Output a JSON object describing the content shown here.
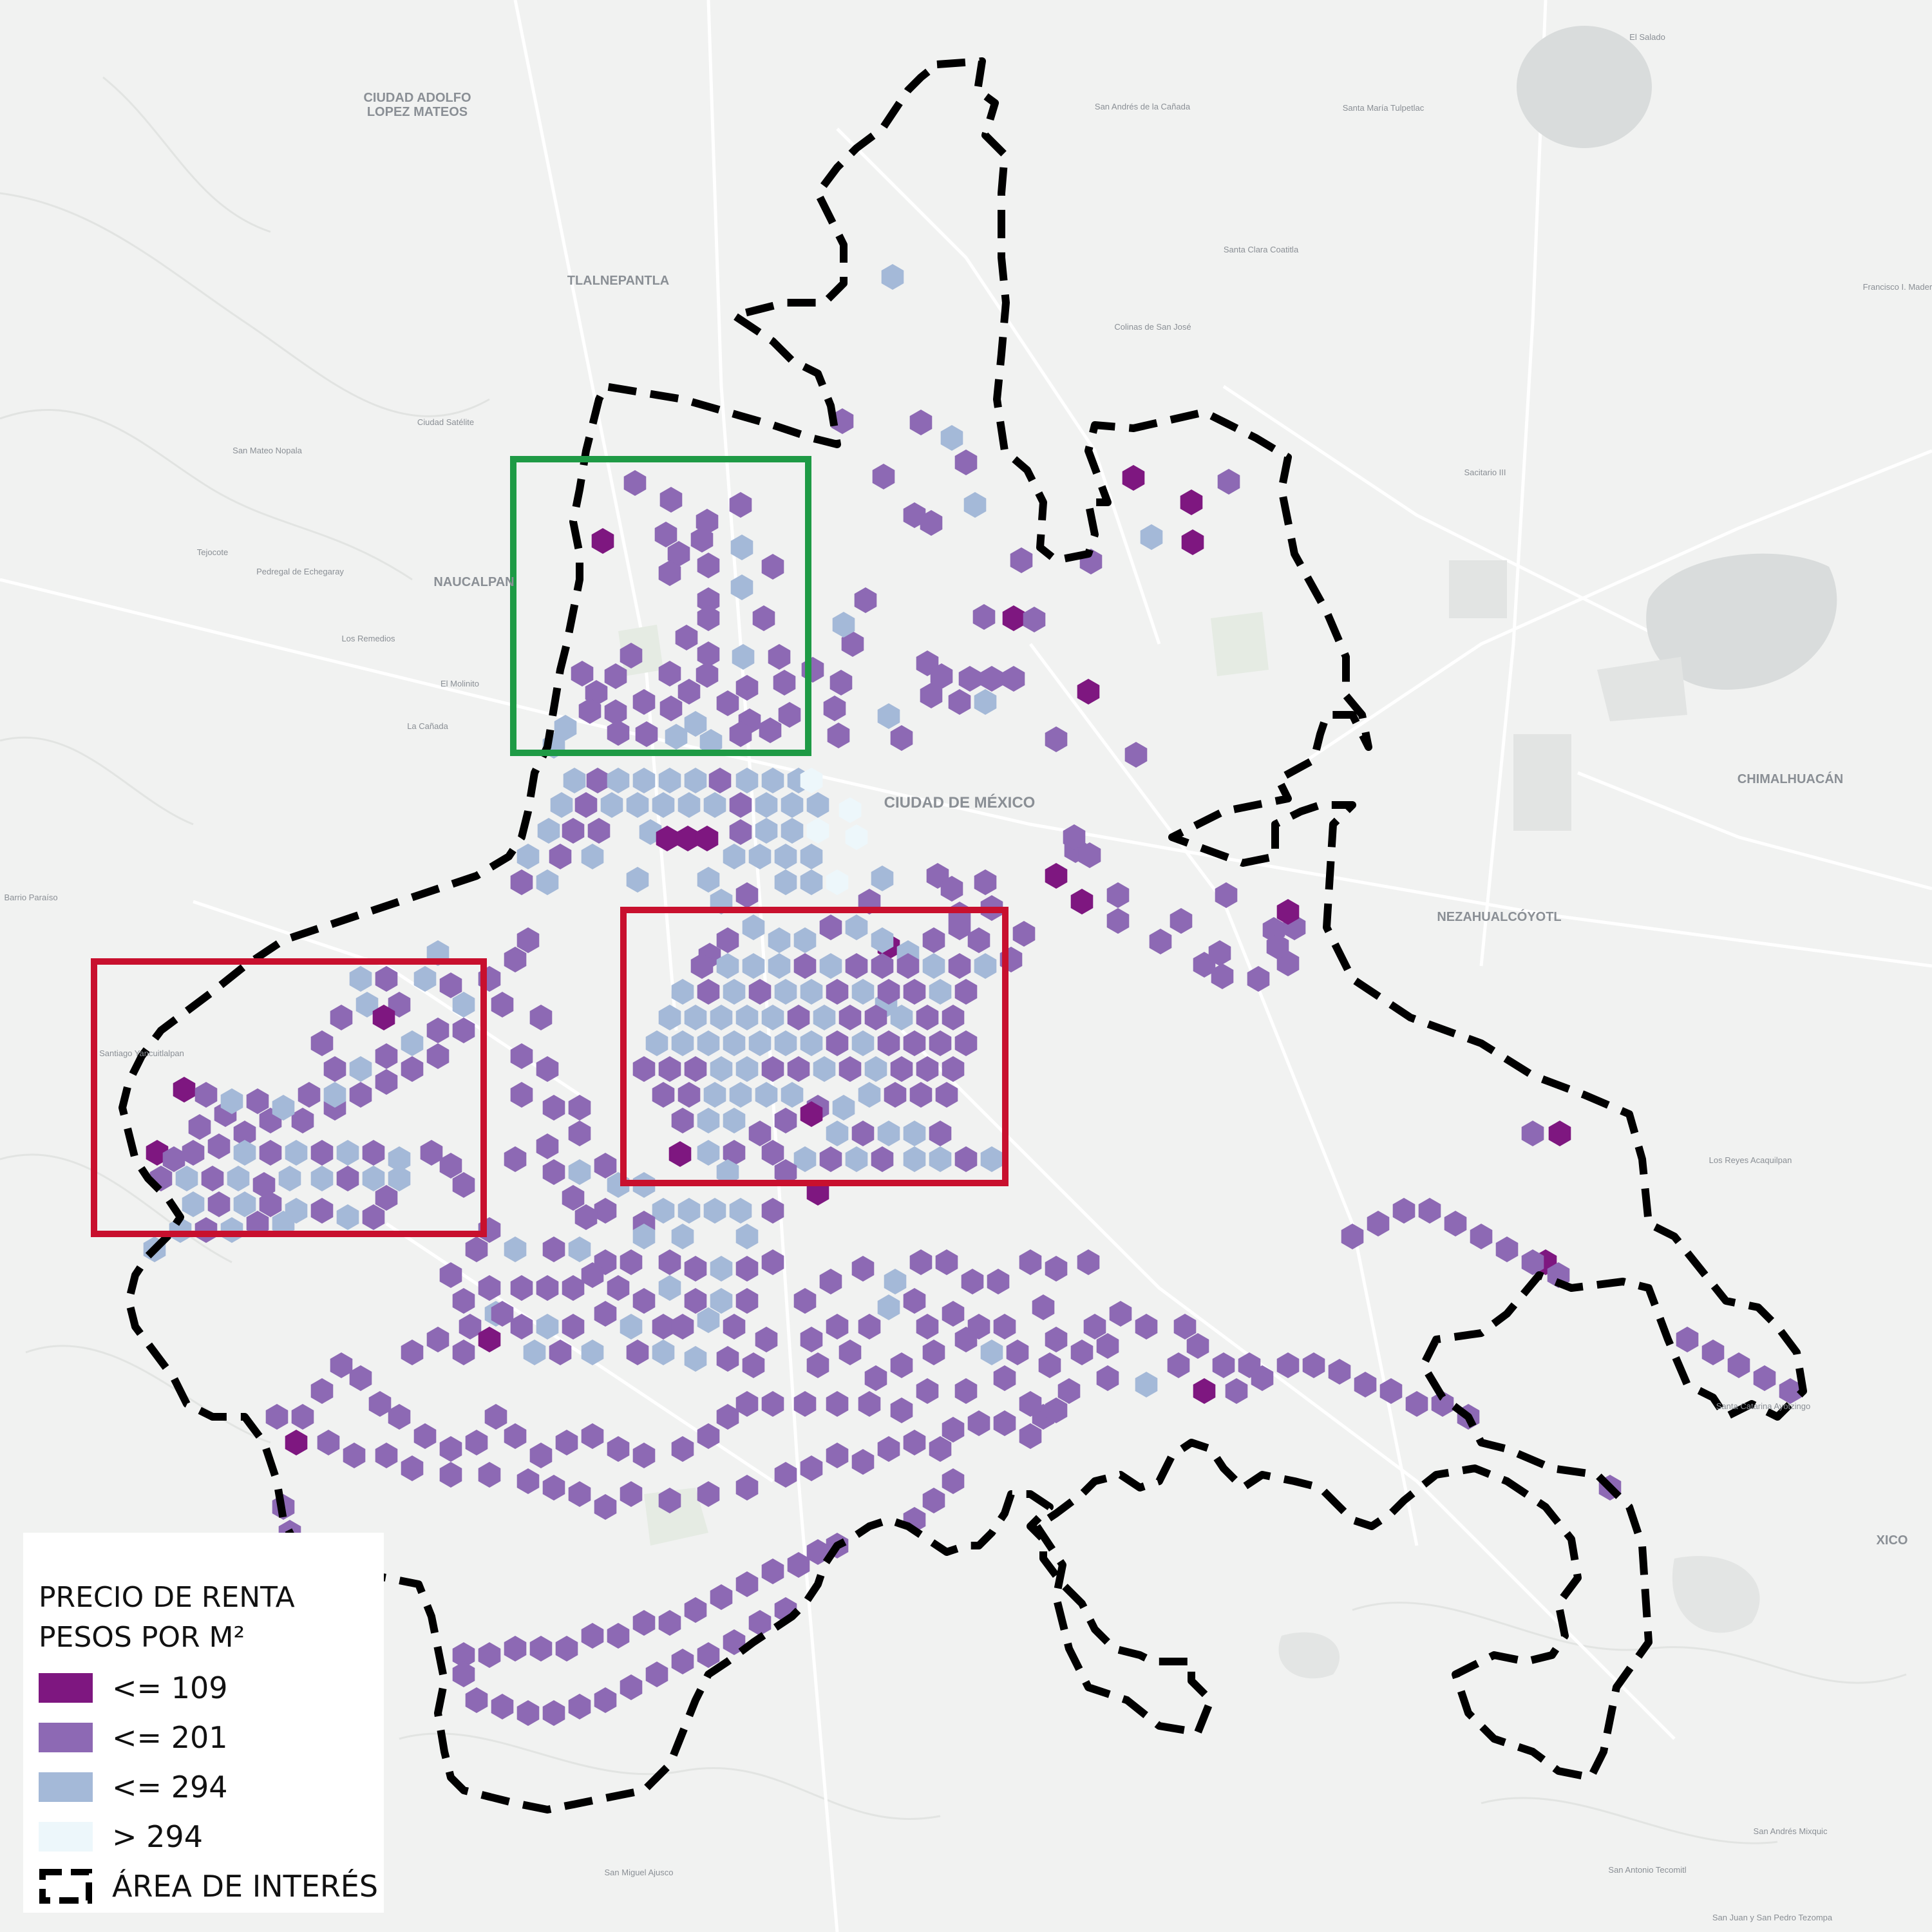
{
  "map_labels": [
    {
      "text": "CIUDAD ADOLFO",
      "kind": "town"
    },
    {
      "text": "LOPEZ MATEOS",
      "kind": "town"
    },
    {
      "text": "TLALNEPANTLA",
      "kind": "town"
    },
    {
      "text": "NAUCALPAN",
      "kind": "town"
    },
    {
      "text": "CIUDAD DE MÉXICO",
      "kind": "city"
    },
    {
      "text": "NEZAHUALCÓYOTL",
      "kind": "town"
    },
    {
      "text": "CHIMALHUACÁN",
      "kind": "town"
    },
    {
      "text": "XICO",
      "kind": "town"
    },
    {
      "text": "Ciudad Satélite",
      "kind": "small"
    },
    {
      "text": "San Mateo Nopala",
      "kind": "small"
    },
    {
      "text": "Tejocote",
      "kind": "small"
    },
    {
      "text": "Pedregal de Echegaray",
      "kind": "small"
    },
    {
      "text": "Los Remedios",
      "kind": "small"
    },
    {
      "text": "El Molinito",
      "kind": "small"
    },
    {
      "text": "La Cañada",
      "kind": "small"
    },
    {
      "text": "Barrio Paraíso",
      "kind": "small"
    },
    {
      "text": "Santiago Yancuitlalpan",
      "kind": "small"
    },
    {
      "text": "San Andrés de la Cañada",
      "kind": "small"
    },
    {
      "text": "Santa María Tulpetlac",
      "kind": "small"
    },
    {
      "text": "El Salado",
      "kind": "small"
    },
    {
      "text": "Santa Clara Coatitla",
      "kind": "small"
    },
    {
      "text": "Colinas de San José",
      "kind": "small"
    },
    {
      "text": "Sacitario III",
      "kind": "small"
    },
    {
      "text": "Francisco I. Madero",
      "kind": "small"
    },
    {
      "text": "Los Reyes Acaquilpan",
      "kind": "small"
    },
    {
      "text": "Santa Catarina Ayotzingo",
      "kind": "small"
    },
    {
      "text": "San Andrés Mixquic",
      "kind": "small"
    },
    {
      "text": "San Antonio Tecomitl",
      "kind": "small"
    },
    {
      "text": "San Miguel Ajusco",
      "kind": "small"
    },
    {
      "text": "San Juan y San Pedro Tezompa",
      "kind": "small"
    }
  ],
  "legend": {
    "title_line1": "PRECIO DE RENTA",
    "title_line2": "PESOS POR M²",
    "classes": [
      {
        "label": "<= 109",
        "color": "#7e1780"
      },
      {
        "label": "<= 201",
        "color": "#8d69b4"
      },
      {
        "label": "<= 294",
        "color": "#a4b9d8"
      },
      {
        "label": "> 294",
        "color": "#edf7fb"
      }
    ],
    "boundary_label": "ÁREA DE INTERÉS"
  },
  "highlight_boxes": [
    {
      "color": "#1e9a45",
      "meaning": "green box"
    },
    {
      "color": "#c8102e",
      "meaning": "red box"
    },
    {
      "color": "#c8102e",
      "meaning": "red box"
    }
  ]
}
